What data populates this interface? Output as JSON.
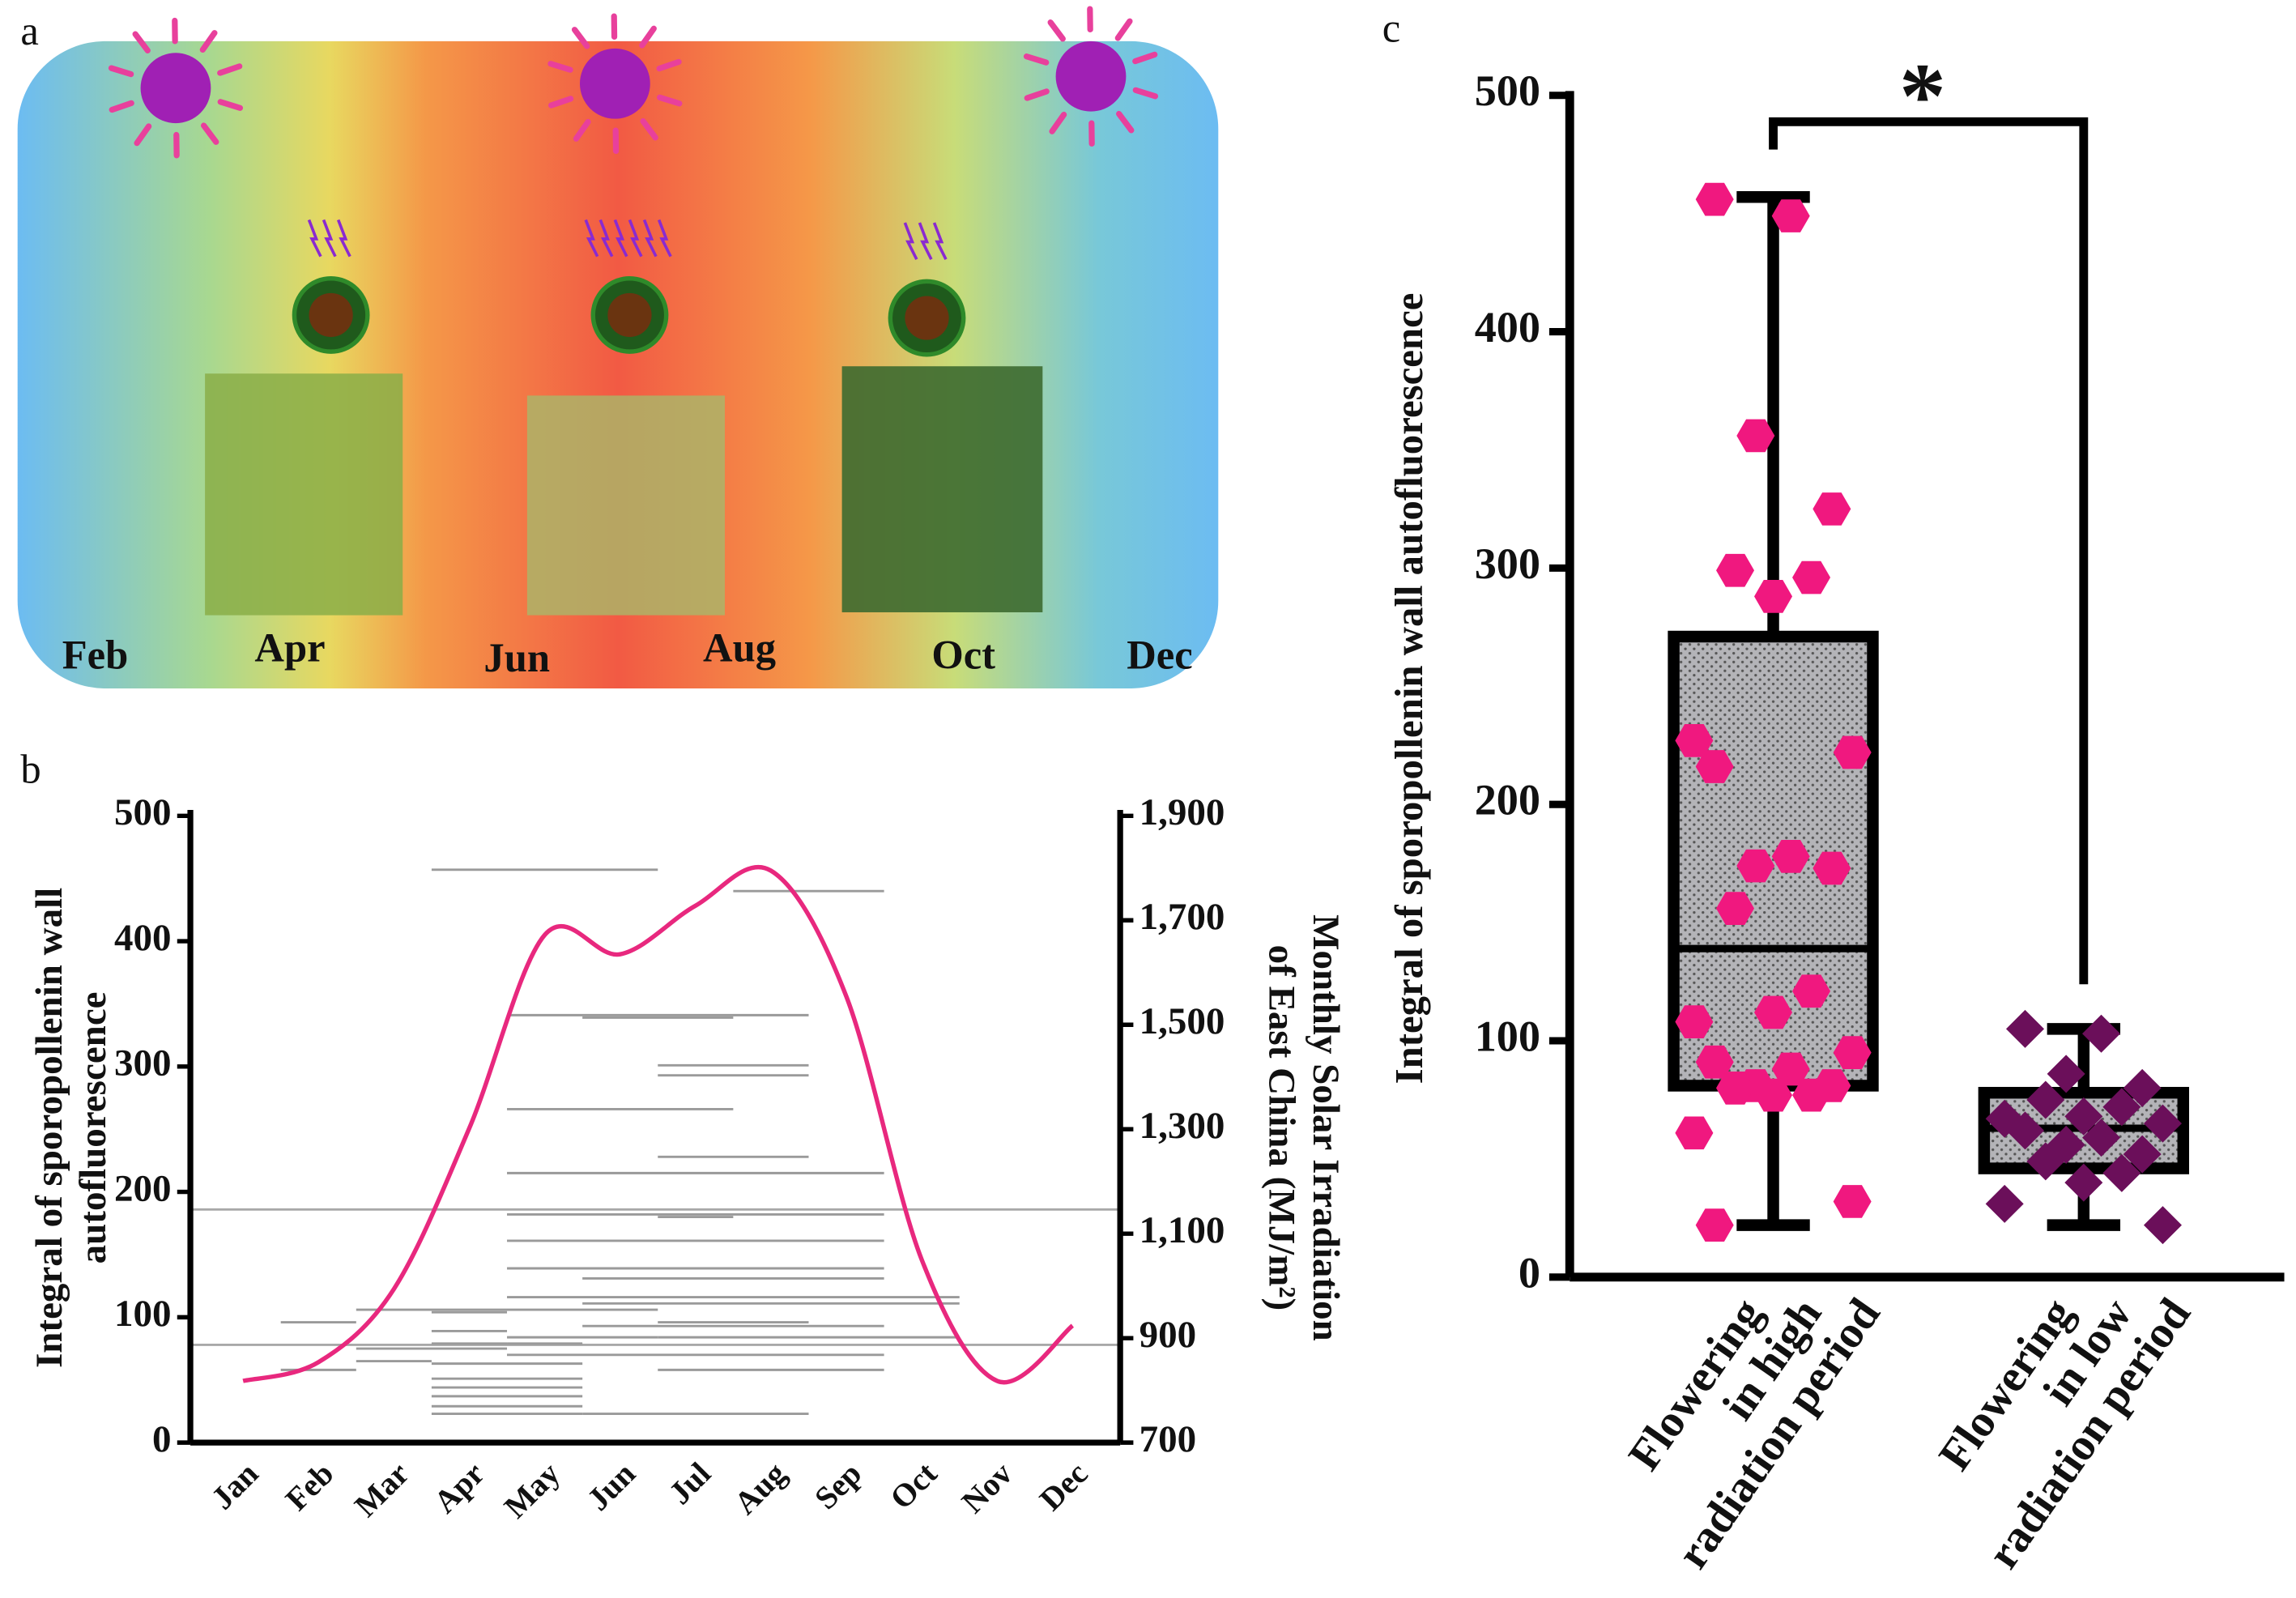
{
  "panels": [
    "a",
    "b",
    "c"
  ],
  "illustration": {
    "months": [
      "Feb",
      "Apr",
      "Jun",
      "Aug",
      "Oct",
      "Dec"
    ]
  },
  "chart_data": [
    {
      "type": "line",
      "y_label": [
        "Integral of sporopollenin wall",
        "autofluorescence"
      ],
      "y2_label": [
        "Monthly Solar Irradiation",
        "of East China (MJ/m²)"
      ],
      "categories": [
        "Jan",
        "Feb",
        "Mar",
        "Apr",
        "May",
        "Jun",
        "Jul",
        "Aug",
        "Sep",
        "Oct",
        "Nov",
        "Dec"
      ],
      "ylim": [
        0,
        500
      ],
      "yticks": [
        0,
        100,
        200,
        300,
        400,
        500
      ],
      "y2lim": [
        700,
        1900
      ],
      "y2ticks": [
        700,
        900,
        {
          "value": 1100,
          "label": "1,100"
        },
        {
          "value": 1300,
          "label": "1,300"
        },
        {
          "value": 1500,
          "label": "1,500"
        },
        {
          "value": 1700,
          "label": "1,700"
        },
        {
          "value": 1900,
          "label": "1,900"
        }
      ],
      "series": [
        {
          "color": "#e8287e",
          "axis": "y2",
          "values": [
            818,
            854,
            994,
            1302,
            1672,
            1635,
            1728,
            1795,
            1554,
            1050,
            818,
            924
          ]
        }
      ],
      "reference_values": [
        186,
        78
      ],
      "reference_color": "#a8a8a8",
      "period_color": "#9a9a9a",
      "periods": [
        {
          "start": 3.5,
          "end": 6.5,
          "value": 457
        },
        {
          "start": 7.5,
          "end": 9.5,
          "value": 440
        },
        {
          "start": 4.5,
          "end": 8.5,
          "value": 341
        },
        {
          "start": 5.5,
          "end": 7.5,
          "value": 339
        },
        {
          "start": 6.5,
          "end": 8.5,
          "value": 301
        },
        {
          "start": 6.5,
          "end": 8.5,
          "value": 293
        },
        {
          "start": 4.5,
          "end": 7.5,
          "value": 266
        },
        {
          "start": 6.5,
          "end": 8.5,
          "value": 228
        },
        {
          "start": 4.5,
          "end": 9.5,
          "value": 215
        },
        {
          "start": 4.5,
          "end": 9.5,
          "value": 182
        },
        {
          "start": 6.5,
          "end": 7.5,
          "value": 180
        },
        {
          "start": 4.5,
          "end": 9.5,
          "value": 161
        },
        {
          "start": 4.5,
          "end": 9.5,
          "value": 139
        },
        {
          "start": 5.5,
          "end": 9.5,
          "value": 131
        },
        {
          "start": 4.5,
          "end": 10.5,
          "value": 116
        },
        {
          "start": 5.5,
          "end": 10.5,
          "value": 111
        },
        {
          "start": 2.5,
          "end": 6.5,
          "value": 106
        },
        {
          "start": 3.5,
          "end": 4.5,
          "value": 104
        },
        {
          "start": 1.5,
          "end": 2.5,
          "value": 96
        },
        {
          "start": 6.5,
          "end": 8.5,
          "value": 96
        },
        {
          "start": 5.5,
          "end": 9.5,
          "value": 93
        },
        {
          "start": 3.5,
          "end": 4.5,
          "value": 89
        },
        {
          "start": 6.5,
          "end": 10.5,
          "value": 84
        },
        {
          "start": 4.5,
          "end": 6.5,
          "value": 84
        },
        {
          "start": 4.5,
          "end": 5.5,
          "value": 79
        },
        {
          "start": 3.5,
          "end": 4.5,
          "value": 79
        },
        {
          "start": 2.5,
          "end": 4.5,
          "value": 75
        },
        {
          "start": 4.5,
          "end": 9.5,
          "value": 70
        },
        {
          "start": 2.5,
          "end": 3.5,
          "value": 65
        },
        {
          "start": 3.5,
          "end": 5.5,
          "value": 63
        },
        {
          "start": 1.5,
          "end": 2.5,
          "value": 58
        },
        {
          "start": 6.5,
          "end": 9.5,
          "value": 58
        },
        {
          "start": 3.5,
          "end": 5.5,
          "value": 51
        },
        {
          "start": 3.5,
          "end": 5.5,
          "value": 44
        },
        {
          "start": 3.5,
          "end": 5.5,
          "value": 37
        },
        {
          "start": 3.5,
          "end": 5.5,
          "value": 29
        },
        {
          "start": 3.5,
          "end": 5.5,
          "value": 23
        },
        {
          "start": 5.5,
          "end": 8.5,
          "value": 23
        }
      ]
    },
    {
      "type": "box",
      "y_label": "Integral of sporopollenin wall autofluorescence",
      "categories": [
        [
          "Flowering",
          "in high",
          "radiation period"
        ],
        [
          "Flowering",
          "in low",
          "radiation period"
        ]
      ],
      "ylim": [
        0,
        500
      ],
      "yticks": [
        0,
        100,
        200,
        300,
        400,
        500
      ],
      "annotation": "*",
      "boxes": [
        {
          "min": 22,
          "q1": 81,
          "median": 139,
          "q3": 271,
          "max": 457,
          "color": "#f0187f",
          "marker": "hexagon",
          "points": [
            456,
            449,
            356,
            325,
            299,
            296,
            288,
            227,
            222,
            216,
            178,
            174,
            173,
            156,
            121,
            112,
            108,
            95,
            91,
            88,
            81,
            81,
            80,
            77,
            77,
            61,
            32,
            22
          ]
        },
        {
          "min": 22,
          "q1": 46,
          "median": 63,
          "q3": 78,
          "max": 105,
          "color": "#6b0f5a",
          "marker": "diamond",
          "points": [
            105,
            103,
            86,
            80,
            75,
            72,
            68,
            67,
            65,
            62,
            59,
            56,
            52,
            49,
            44,
            40,
            31,
            22
          ]
        }
      ]
    }
  ]
}
